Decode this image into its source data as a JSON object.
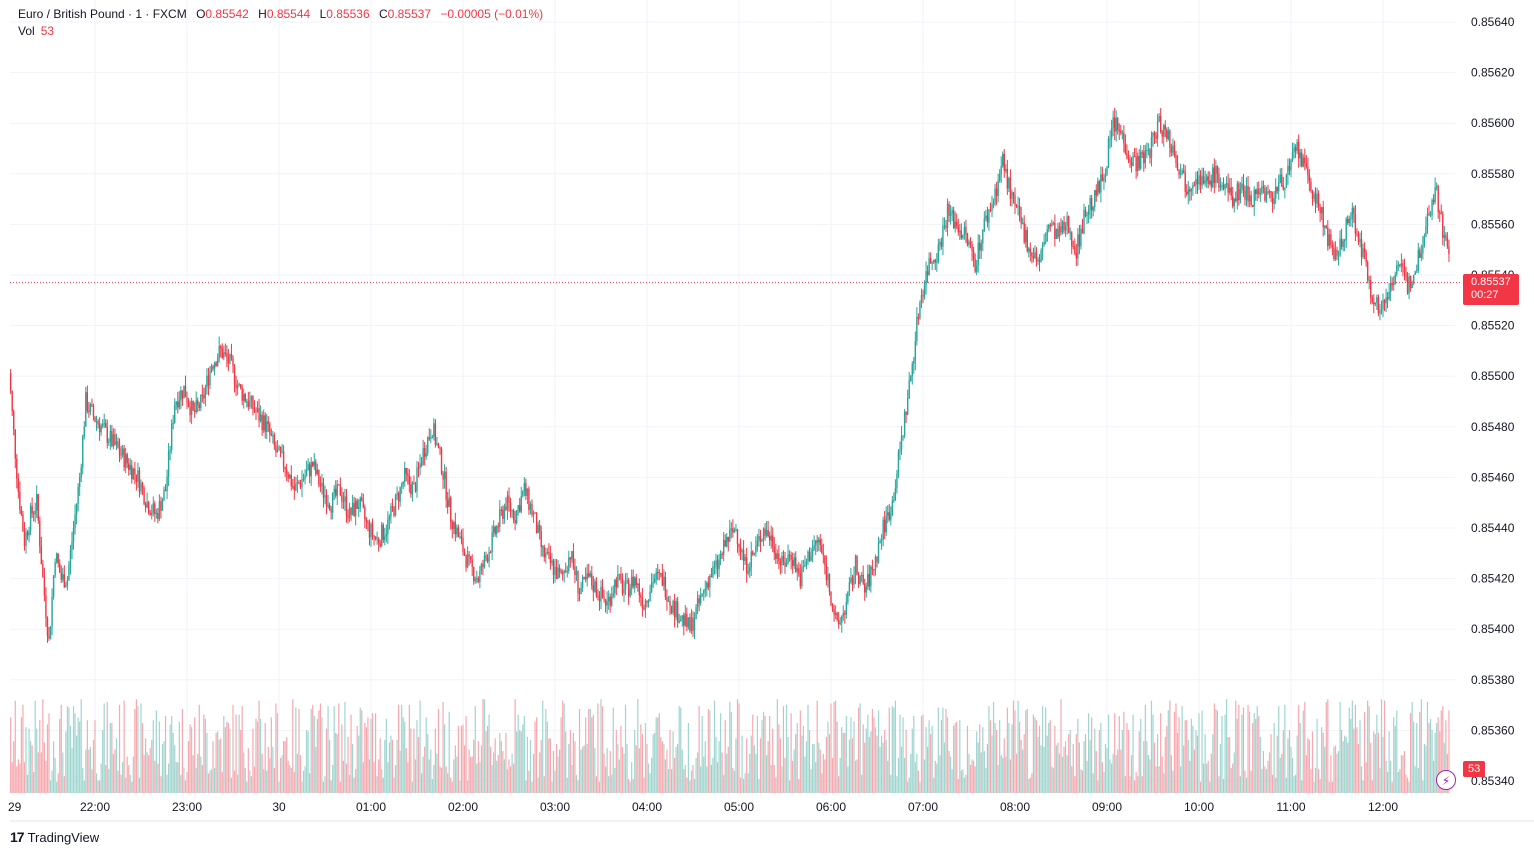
{
  "header": {
    "symbol": "Euro / British Pound · 1 · FXCM",
    "open_label": "O",
    "open": "0.85542",
    "high_label": "H",
    "high": "0.85544",
    "low_label": "L",
    "low": "0.85536",
    "close_label": "C",
    "close": "0.85537",
    "change": "−0.00005 (−0.01%)",
    "vol_label": "Vol",
    "vol_value": "53"
  },
  "last_price": {
    "price": "0.85537",
    "countdown": "00:27"
  },
  "volume_tag": "53",
  "brand": {
    "logo": "17",
    "name": "TradingView"
  },
  "colors": {
    "up": "#26a69a",
    "down": "#f23645",
    "up_vol": "#9fd6d0",
    "down_vol": "#f7a9af",
    "grid": "#f0f3fa",
    "axis_text": "#131722"
  },
  "icons": {
    "replay": "lightning-bolt-icon"
  },
  "chart_data": {
    "type": "candlestick",
    "interval_minutes": 1,
    "y_ticks": [
      "0.85640",
      "0.85620",
      "0.85600",
      "0.85580",
      "0.85560",
      "0.85540",
      "0.85520",
      "0.85500",
      "0.85480",
      "0.85460",
      "0.85440",
      "0.85420",
      "0.85400",
      "0.85380",
      "0.85360",
      "0.85340"
    ],
    "x_ticks": [
      "29",
      "22:00",
      "23:00",
      "30",
      "01:00",
      "02:00",
      "03:00",
      "04:00",
      "05:00",
      "06:00",
      "07:00",
      "08:00",
      "09:00",
      "10:00",
      "11:00",
      "12:00"
    ],
    "ylim": [
      0.85335,
      0.85645
    ],
    "last_close": 0.85537,
    "price_path": [
      [
        "21:03",
        0.8551
      ],
      [
        "21:06",
        0.85485
      ],
      [
        "21:10",
        0.85455
      ],
      [
        "21:14",
        0.85435
      ],
      [
        "21:18",
        0.85445
      ],
      [
        "21:22",
        0.8545
      ],
      [
        "21:26",
        0.8542
      ],
      [
        "21:30",
        0.85395
      ],
      [
        "21:34",
        0.8543
      ],
      [
        "21:38",
        0.8542
      ],
      [
        "21:42",
        0.8542
      ],
      [
        "21:46",
        0.8544
      ],
      [
        "21:50",
        0.8546
      ],
      [
        "21:54",
        0.8549
      ],
      [
        "21:58",
        0.85485
      ],
      [
        "22:04",
        0.8548
      ],
      [
        "22:10",
        0.85475
      ],
      [
        "22:16",
        0.8547
      ],
      [
        "22:22",
        0.85465
      ],
      [
        "22:28",
        0.8546
      ],
      [
        "22:34",
        0.8545
      ],
      [
        "22:40",
        0.85445
      ],
      [
        "22:46",
        0.85455
      ],
      [
        "22:52",
        0.8549
      ],
      [
        "22:58",
        0.85495
      ],
      [
        "23:04",
        0.85485
      ],
      [
        "23:10",
        0.8549
      ],
      [
        "23:16",
        0.85505
      ],
      [
        "23:22",
        0.8551
      ],
      [
        "23:28",
        0.85505
      ],
      [
        "23:34",
        0.85495
      ],
      [
        "23:40",
        0.8549
      ],
      [
        "23:46",
        0.85485
      ],
      [
        "23:52",
        0.8548
      ],
      [
        "23:58",
        0.8547
      ],
      [
        "00:04",
        0.85465
      ],
      [
        "00:10",
        0.85455
      ],
      [
        "00:16",
        0.8546
      ],
      [
        "00:22",
        0.85465
      ],
      [
        "00:28",
        0.85455
      ],
      [
        "00:34",
        0.8545
      ],
      [
        "00:40",
        0.85455
      ],
      [
        "00:46",
        0.85445
      ],
      [
        "00:52",
        0.8545
      ],
      [
        "00:58",
        0.8544
      ],
      [
        "01:04",
        0.85435
      ],
      [
        "01:10",
        0.8544
      ],
      [
        "01:16",
        0.8545
      ],
      [
        "01:22",
        0.8546
      ],
      [
        "01:28",
        0.85455
      ],
      [
        "01:34",
        0.8547
      ],
      [
        "01:40",
        0.8548
      ],
      [
        "01:46",
        0.85465
      ],
      [
        "01:52",
        0.85445
      ],
      [
        "01:58",
        0.85435
      ],
      [
        "02:04",
        0.85425
      ],
      [
        "02:10",
        0.8542
      ],
      [
        "02:16",
        0.8543
      ],
      [
        "02:22",
        0.8544
      ],
      [
        "02:28",
        0.8545
      ],
      [
        "02:34",
        0.85445
      ],
      [
        "02:40",
        0.85455
      ],
      [
        "02:46",
        0.85445
      ],
      [
        "02:52",
        0.8543
      ],
      [
        "02:58",
        0.85425
      ],
      [
        "03:04",
        0.8542
      ],
      [
        "03:10",
        0.8543
      ],
      [
        "03:16",
        0.85415
      ],
      [
        "03:22",
        0.8542
      ],
      [
        "03:28",
        0.85415
      ],
      [
        "03:34",
        0.8541
      ],
      [
        "03:40",
        0.8542
      ],
      [
        "03:46",
        0.85415
      ],
      [
        "03:52",
        0.8542
      ],
      [
        "03:58",
        0.8541
      ],
      [
        "04:04",
        0.8542
      ],
      [
        "04:10",
        0.8542
      ],
      [
        "04:16",
        0.8541
      ],
      [
        "04:22",
        0.85405
      ],
      [
        "04:28",
        0.854
      ],
      [
        "04:34",
        0.8541
      ],
      [
        "04:40",
        0.8542
      ],
      [
        "04:46",
        0.85425
      ],
      [
        "04:52",
        0.85435
      ],
      [
        "04:58",
        0.8544
      ],
      [
        "05:04",
        0.85425
      ],
      [
        "05:10",
        0.8543
      ],
      [
        "05:16",
        0.8544
      ],
      [
        "05:22",
        0.85435
      ],
      [
        "05:28",
        0.85425
      ],
      [
        "05:34",
        0.8543
      ],
      [
        "05:40",
        0.8542
      ],
      [
        "05:46",
        0.8543
      ],
      [
        "05:52",
        0.85435
      ],
      [
        "05:58",
        0.8542
      ],
      [
        "06:04",
        0.854
      ],
      [
        "06:10",
        0.8541
      ],
      [
        "06:16",
        0.85425
      ],
      [
        "06:22",
        0.85415
      ],
      [
        "06:28",
        0.85425
      ],
      [
        "06:34",
        0.8544
      ],
      [
        "06:40",
        0.8545
      ],
      [
        "06:46",
        0.85475
      ],
      [
        "06:52",
        0.855
      ],
      [
        "06:58",
        0.8553
      ],
      [
        "07:04",
        0.85545
      ],
      [
        "07:10",
        0.8555
      ],
      [
        "07:16",
        0.85565
      ],
      [
        "07:22",
        0.8556
      ],
      [
        "07:28",
        0.85555
      ],
      [
        "07:34",
        0.85545
      ],
      [
        "07:40",
        0.8556
      ],
      [
        "07:46",
        0.8557
      ],
      [
        "07:52",
        0.85585
      ],
      [
        "07:58",
        0.8557
      ],
      [
        "08:04",
        0.8556
      ],
      [
        "08:10",
        0.8555
      ],
      [
        "08:16",
        0.85545
      ],
      [
        "08:22",
        0.8556
      ],
      [
        "08:28",
        0.85555
      ],
      [
        "08:34",
        0.8556
      ],
      [
        "08:40",
        0.8555
      ],
      [
        "08:46",
        0.85565
      ],
      [
        "08:52",
        0.8557
      ],
      [
        "08:58",
        0.8558
      ],
      [
        "09:04",
        0.856
      ],
      [
        "09:10",
        0.85595
      ],
      [
        "09:16",
        0.85585
      ],
      [
        "09:22",
        0.85585
      ],
      [
        "09:28",
        0.8559
      ],
      [
        "09:34",
        0.856
      ],
      [
        "09:40",
        0.85595
      ],
      [
        "09:46",
        0.85585
      ],
      [
        "09:52",
        0.85575
      ],
      [
        "09:58",
        0.8558
      ],
      [
        "10:04",
        0.85575
      ],
      [
        "10:10",
        0.8558
      ],
      [
        "10:16",
        0.85575
      ],
      [
        "10:22",
        0.8557
      ],
      [
        "10:28",
        0.85575
      ],
      [
        "10:34",
        0.8557
      ],
      [
        "10:40",
        0.85575
      ],
      [
        "10:46",
        0.8557
      ],
      [
        "10:52",
        0.85575
      ],
      [
        "10:58",
        0.8558
      ],
      [
        "11:04",
        0.8559
      ],
      [
        "11:10",
        0.8558
      ],
      [
        "11:16",
        0.8557
      ],
      [
        "11:22",
        0.8556
      ],
      [
        "11:28",
        0.85545
      ],
      [
        "11:34",
        0.85555
      ],
      [
        "11:40",
        0.85565
      ],
      [
        "11:46",
        0.8555
      ],
      [
        "11:52",
        0.85535
      ],
      [
        "11:58",
        0.85525
      ],
      [
        "12:04",
        0.85535
      ],
      [
        "12:10",
        0.85545
      ],
      [
        "12:16",
        0.85535
      ],
      [
        "12:22",
        0.85545
      ],
      [
        "12:28",
        0.8556
      ],
      [
        "12:34",
        0.85575
      ],
      [
        "12:40",
        0.85555
      ],
      [
        "12:44",
        0.85545
      ],
      [
        "12:46",
        0.85537
      ]
    ]
  }
}
